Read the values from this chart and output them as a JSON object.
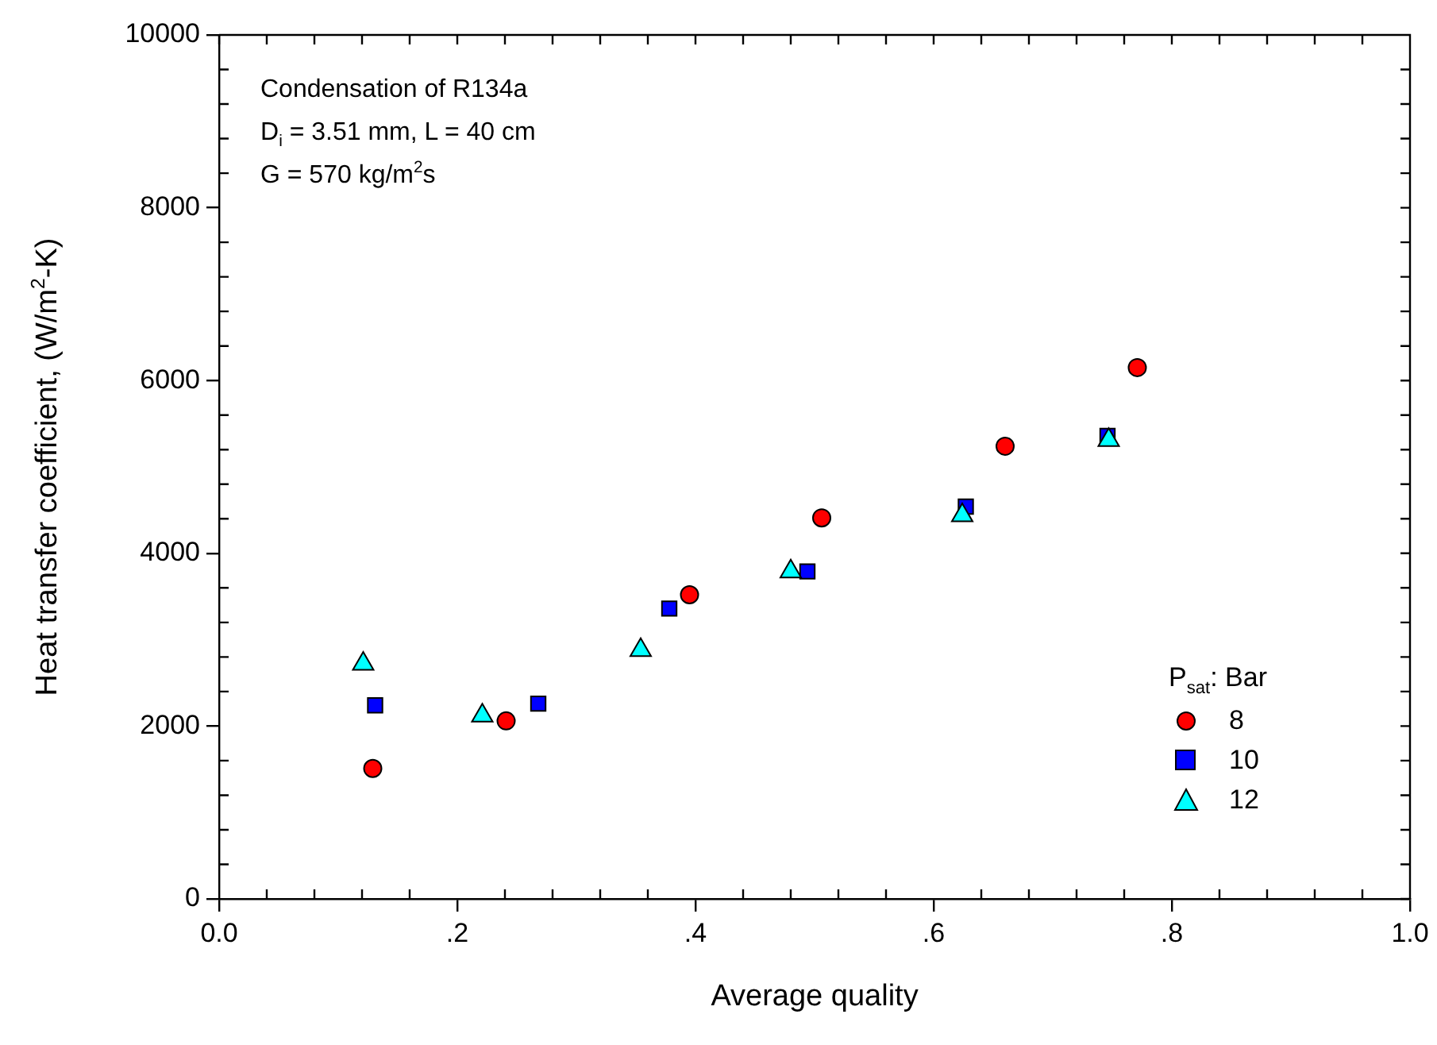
{
  "chart_data": {
    "type": "scatter",
    "xlabel": "Average quality",
    "ylabel": "Heat transfer coefficient, (W/m$^{2}$-K)",
    "legend_title": "P$_{sat}$: Bar",
    "legend": "bottom right",
    "annotations": [
      "Condensation of R134a",
      "D$_{i}$ = 3.51 mm, L = 40 cm",
      "G = 570 kg/m$^{2}$s"
    ],
    "xlim": [
      0,
      1
    ],
    "ylim": [
      0,
      10000
    ],
    "xticks": [
      {
        "value": 0,
        "label": "0.0"
      },
      {
        "value": 0.04,
        "label": null
      },
      {
        "value": 0.08,
        "label": null
      },
      {
        "value": 0.12,
        "label": null
      },
      {
        "value": 0.16,
        "label": null
      },
      {
        "value": 0.2,
        "label": ".2"
      },
      {
        "value": 0.24,
        "label": null
      },
      {
        "value": 0.28,
        "label": null
      },
      {
        "value": 0.32,
        "label": null
      },
      {
        "value": 0.36,
        "label": null
      },
      {
        "value": 0.4,
        "label": ".4"
      },
      {
        "value": 0.44,
        "label": null
      },
      {
        "value": 0.48,
        "label": null
      },
      {
        "value": 0.52,
        "label": null
      },
      {
        "value": 0.56,
        "label": null
      },
      {
        "value": 0.6,
        "label": ".6"
      },
      {
        "value": 0.64,
        "label": null
      },
      {
        "value": 0.68,
        "label": null
      },
      {
        "value": 0.72,
        "label": null
      },
      {
        "value": 0.76,
        "label": null
      },
      {
        "value": 0.8,
        "label": ".8"
      },
      {
        "value": 0.84,
        "label": null
      },
      {
        "value": 0.88,
        "label": null
      },
      {
        "value": 0.92,
        "label": null
      },
      {
        "value": 0.96,
        "label": null
      },
      {
        "value": 1,
        "label": "1.0"
      }
    ],
    "yticks": [
      0,
      {
        "value": 400,
        "label": null
      },
      {
        "value": 800,
        "label": null
      },
      {
        "value": 1200,
        "label": null
      },
      {
        "value": 1600,
        "label": null
      },
      2000,
      {
        "value": 2400,
        "label": null
      },
      {
        "value": 2800,
        "label": null
      },
      {
        "value": 3200,
        "label": null
      },
      {
        "value": 3600,
        "label": null
      },
      4000,
      {
        "value": 4400,
        "label": null
      },
      {
        "value": 4800,
        "label": null
      },
      {
        "value": 5200,
        "label": null
      },
      {
        "value": 5600,
        "label": null
      },
      6000,
      {
        "value": 6400,
        "label": null
      },
      {
        "value": 6800,
        "label": null
      },
      {
        "value": 7200,
        "label": null
      },
      {
        "value": 7600,
        "label": null
      },
      8000,
      {
        "value": 8400,
        "label": null
      },
      {
        "value": 8800,
        "label": null
      },
      {
        "value": 9200,
        "label": null
      },
      {
        "value": 9600,
        "label": null
      },
      10000
    ],
    "series": [
      {
        "name": "8",
        "color": "#ff0000",
        "marker": "circle",
        "x": [
          0.129,
          0.241,
          0.395,
          0.506,
          0.66,
          0.771
        ],
        "values": [
          1510,
          2060,
          3520,
          4410,
          5240,
          6150
        ]
      },
      {
        "name": "10",
        "color": "#0000ff",
        "marker": "square",
        "x": [
          0.131,
          0.268,
          0.378,
          0.494,
          0.627,
          0.746
        ],
        "values": [
          2240,
          2260,
          3360,
          3790,
          4540,
          5360
        ]
      },
      {
        "name": "12",
        "color": "#00ffff",
        "marker": "triangle",
        "x": [
          0.121,
          0.221,
          0.354,
          0.48,
          0.624,
          0.747
        ],
        "values": [
          2720,
          2120,
          2880,
          3790,
          4440,
          5310
        ]
      }
    ]
  }
}
